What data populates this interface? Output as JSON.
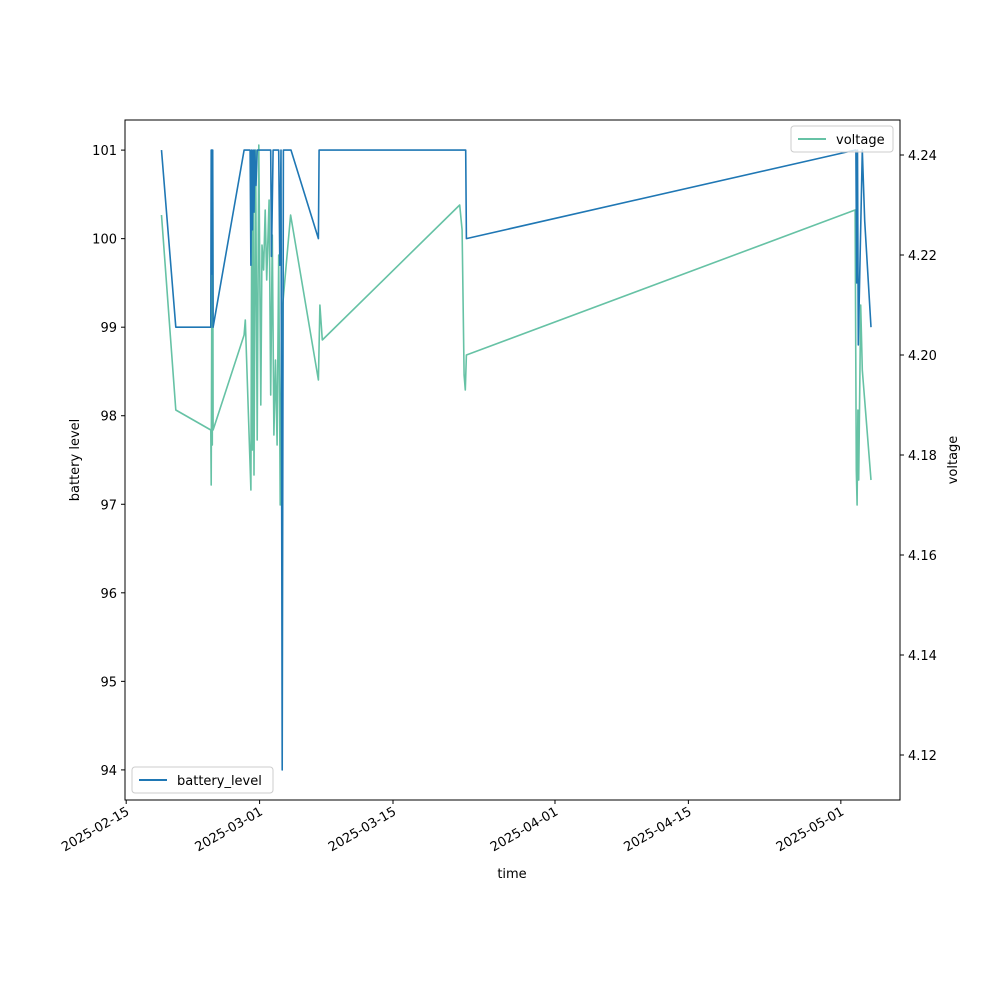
{
  "chart_data": {
    "type": "line",
    "xlabel": "time",
    "ylabel_left": "battery level",
    "ylabel_right": "voltage",
    "x_ticks": [
      "2025-02-15",
      "2025-03-01",
      "2025-03-15",
      "2025-04-01",
      "2025-04-15",
      "2025-05-01"
    ],
    "y_left_ticks": [
      "94",
      "95",
      "96",
      "97",
      "98",
      "99",
      "100",
      "101"
    ],
    "y_right_ticks": [
      "4.12",
      "4.14",
      "4.16",
      "4.18",
      "4.20",
      "4.22",
      "4.24"
    ],
    "xlim": [
      "2025-02-14T21:00",
      "2025-05-07T05:00"
    ],
    "ylim_left": [
      93.66,
      101.34
    ],
    "ylim_right": [
      4.111,
      4.247
    ],
    "grid": false,
    "legend_left": {
      "placement": "lower-left",
      "entries": [
        "battery_level"
      ]
    },
    "legend_right": {
      "placement": "upper-right",
      "entries": [
        "voltage"
      ]
    },
    "colors": {
      "battery_level": "#1f77b4",
      "voltage": "#66c2a5"
    },
    "series": [
      {
        "name": "battery_level",
        "axis": "left",
        "points": [
          [
            "2025-02-18T17:00",
            101
          ],
          [
            "2025-02-20T05:00",
            99
          ],
          [
            "2025-02-23T21:00",
            99
          ],
          [
            "2025-02-23T22:00",
            101
          ],
          [
            "2025-02-23T23:00",
            99.6
          ],
          [
            "2025-02-24T00:00",
            101
          ],
          [
            "2025-02-24T01:00",
            100.7
          ],
          [
            "2025-02-24T02:00",
            101
          ],
          [
            "2025-02-24T03:00",
            99
          ],
          [
            "2025-02-27T09:00",
            101
          ],
          [
            "2025-02-28T00:00",
            101
          ],
          [
            "2025-02-28T02:00",
            99.7
          ],
          [
            "2025-02-28T04:00",
            101
          ],
          [
            "2025-02-28T06:00",
            100.1
          ],
          [
            "2025-02-28T08:00",
            101
          ],
          [
            "2025-02-28T10:00",
            100.3
          ],
          [
            "2025-02-28T12:00",
            101
          ],
          [
            "2025-02-28T15:00",
            100.6
          ],
          [
            "2025-02-28T18:00",
            101
          ],
          [
            "2025-03-02T04:00",
            101
          ],
          [
            "2025-03-02T06:00",
            99.8
          ],
          [
            "2025-03-02T10:00",
            101
          ],
          [
            "2025-03-03T00:00",
            101
          ],
          [
            "2025-03-03T03:00",
            99.7
          ],
          [
            "2025-03-03T06:00",
            101
          ],
          [
            "2025-03-03T09:00",
            94
          ],
          [
            "2025-03-03T12:00",
            101
          ],
          [
            "2025-03-04T07:00",
            101
          ],
          [
            "2025-03-07T04:00",
            100
          ],
          [
            "2025-03-07T06:00",
            101
          ],
          [
            "2025-03-22T15:00",
            101
          ],
          [
            "2025-03-22T17:00",
            100
          ],
          [
            "2025-05-02T12:00",
            101
          ],
          [
            "2025-05-02T14:00",
            101
          ],
          [
            "2025-05-02T16:00",
            99.5
          ],
          [
            "2025-05-02T18:00",
            101
          ],
          [
            "2025-05-02T20:00",
            98.8
          ],
          [
            "2025-05-03T06:00",
            101
          ],
          [
            "2025-05-03T12:00",
            100.2
          ],
          [
            "2025-05-04T04:00",
            99
          ]
        ]
      },
      {
        "name": "voltage",
        "axis": "right",
        "points": [
          [
            "2025-02-18T17:00",
            4.228
          ],
          [
            "2025-02-20T05:00",
            4.189
          ],
          [
            "2025-02-23T21:00",
            4.185
          ],
          [
            "2025-02-23T22:00",
            4.174
          ],
          [
            "2025-02-24T00:00",
            4.217
          ],
          [
            "2025-02-24T01:00",
            4.182
          ],
          [
            "2025-02-24T02:00",
            4.237
          ],
          [
            "2025-02-24T03:00",
            4.185
          ],
          [
            "2025-02-27T09:00",
            4.204
          ],
          [
            "2025-02-27T12:00",
            4.207
          ],
          [
            "2025-02-28T02:00",
            4.173
          ],
          [
            "2025-02-28T04:00",
            4.225
          ],
          [
            "2025-02-28T06:00",
            4.181
          ],
          [
            "2025-02-28T08:00",
            4.232
          ],
          [
            "2025-02-28T10:00",
            4.176
          ],
          [
            "2025-02-28T14:00",
            4.241
          ],
          [
            "2025-02-28T18:00",
            4.183
          ],
          [
            "2025-02-28T22:00",
            4.242
          ],
          [
            "2025-03-01T03:00",
            4.19
          ],
          [
            "2025-03-01T06:00",
            4.222
          ],
          [
            "2025-03-01T10:00",
            4.217
          ],
          [
            "2025-03-01T14:00",
            4.229
          ],
          [
            "2025-03-01T18:00",
            4.215
          ],
          [
            "2025-03-02T00:00",
            4.231
          ],
          [
            "2025-03-02T04:00",
            4.192
          ],
          [
            "2025-03-02T08:00",
            4.224
          ],
          [
            "2025-03-02T12:00",
            4.184
          ],
          [
            "2025-03-02T16:00",
            4.199
          ],
          [
            "2025-03-02T20:00",
            4.182
          ],
          [
            "2025-03-03T00:00",
            4.22
          ],
          [
            "2025-03-03T04:00",
            4.17
          ],
          [
            "2025-03-03T08:00",
            4.208
          ],
          [
            "2025-03-04T06:00",
            4.228
          ],
          [
            "2025-03-07T04:00",
            4.195
          ],
          [
            "2025-03-07T08:00",
            4.21
          ],
          [
            "2025-03-07T14:00",
            4.203
          ],
          [
            "2025-03-22T00:00",
            4.23
          ],
          [
            "2025-03-22T06:00",
            4.225
          ],
          [
            "2025-03-22T11:00",
            4.196
          ],
          [
            "2025-03-22T14:00",
            4.193
          ],
          [
            "2025-03-22T17:00",
            4.2
          ],
          [
            "2025-05-02T12:00",
            4.229
          ],
          [
            "2025-05-02T15:00",
            4.177
          ],
          [
            "2025-05-02T17:00",
            4.17
          ],
          [
            "2025-05-02T19:00",
            4.189
          ],
          [
            "2025-05-02T21:00",
            4.175
          ],
          [
            "2025-05-03T02:00",
            4.21
          ],
          [
            "2025-05-03T06:00",
            4.197
          ],
          [
            "2025-05-04T04:00",
            4.175
          ]
        ]
      }
    ]
  }
}
